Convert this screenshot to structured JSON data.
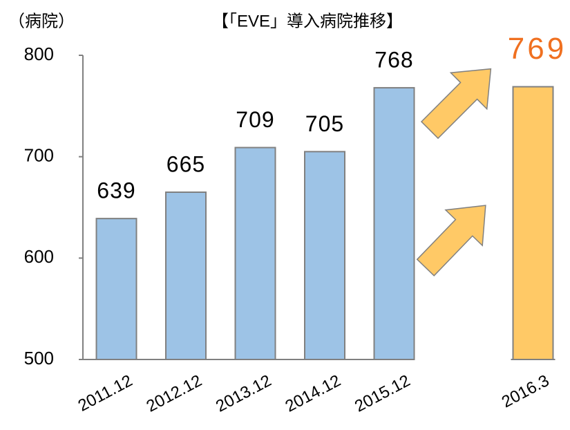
{
  "chart_data": {
    "type": "bar",
    "title": "【「EVE」導入病院推移】",
    "y_label": "（病院）",
    "categories": [
      "2011.12",
      "2012.12",
      "2013.12",
      "2014.12",
      "2015.12",
      "2016.3"
    ],
    "values": [
      639,
      665,
      709,
      705,
      768,
      769
    ],
    "colors": [
      "#9dc3e6",
      "#9dc3e6",
      "#9dc3e6",
      "#9dc3e6",
      "#9dc3e6",
      "#ffc966"
    ],
    "label_colors": [
      "#000000",
      "#000000",
      "#000000",
      "#000000",
      "#000000",
      "#f07020"
    ],
    "ylim": [
      500,
      800
    ],
    "yticks": [
      500,
      600,
      700,
      800
    ],
    "grid": false
  }
}
